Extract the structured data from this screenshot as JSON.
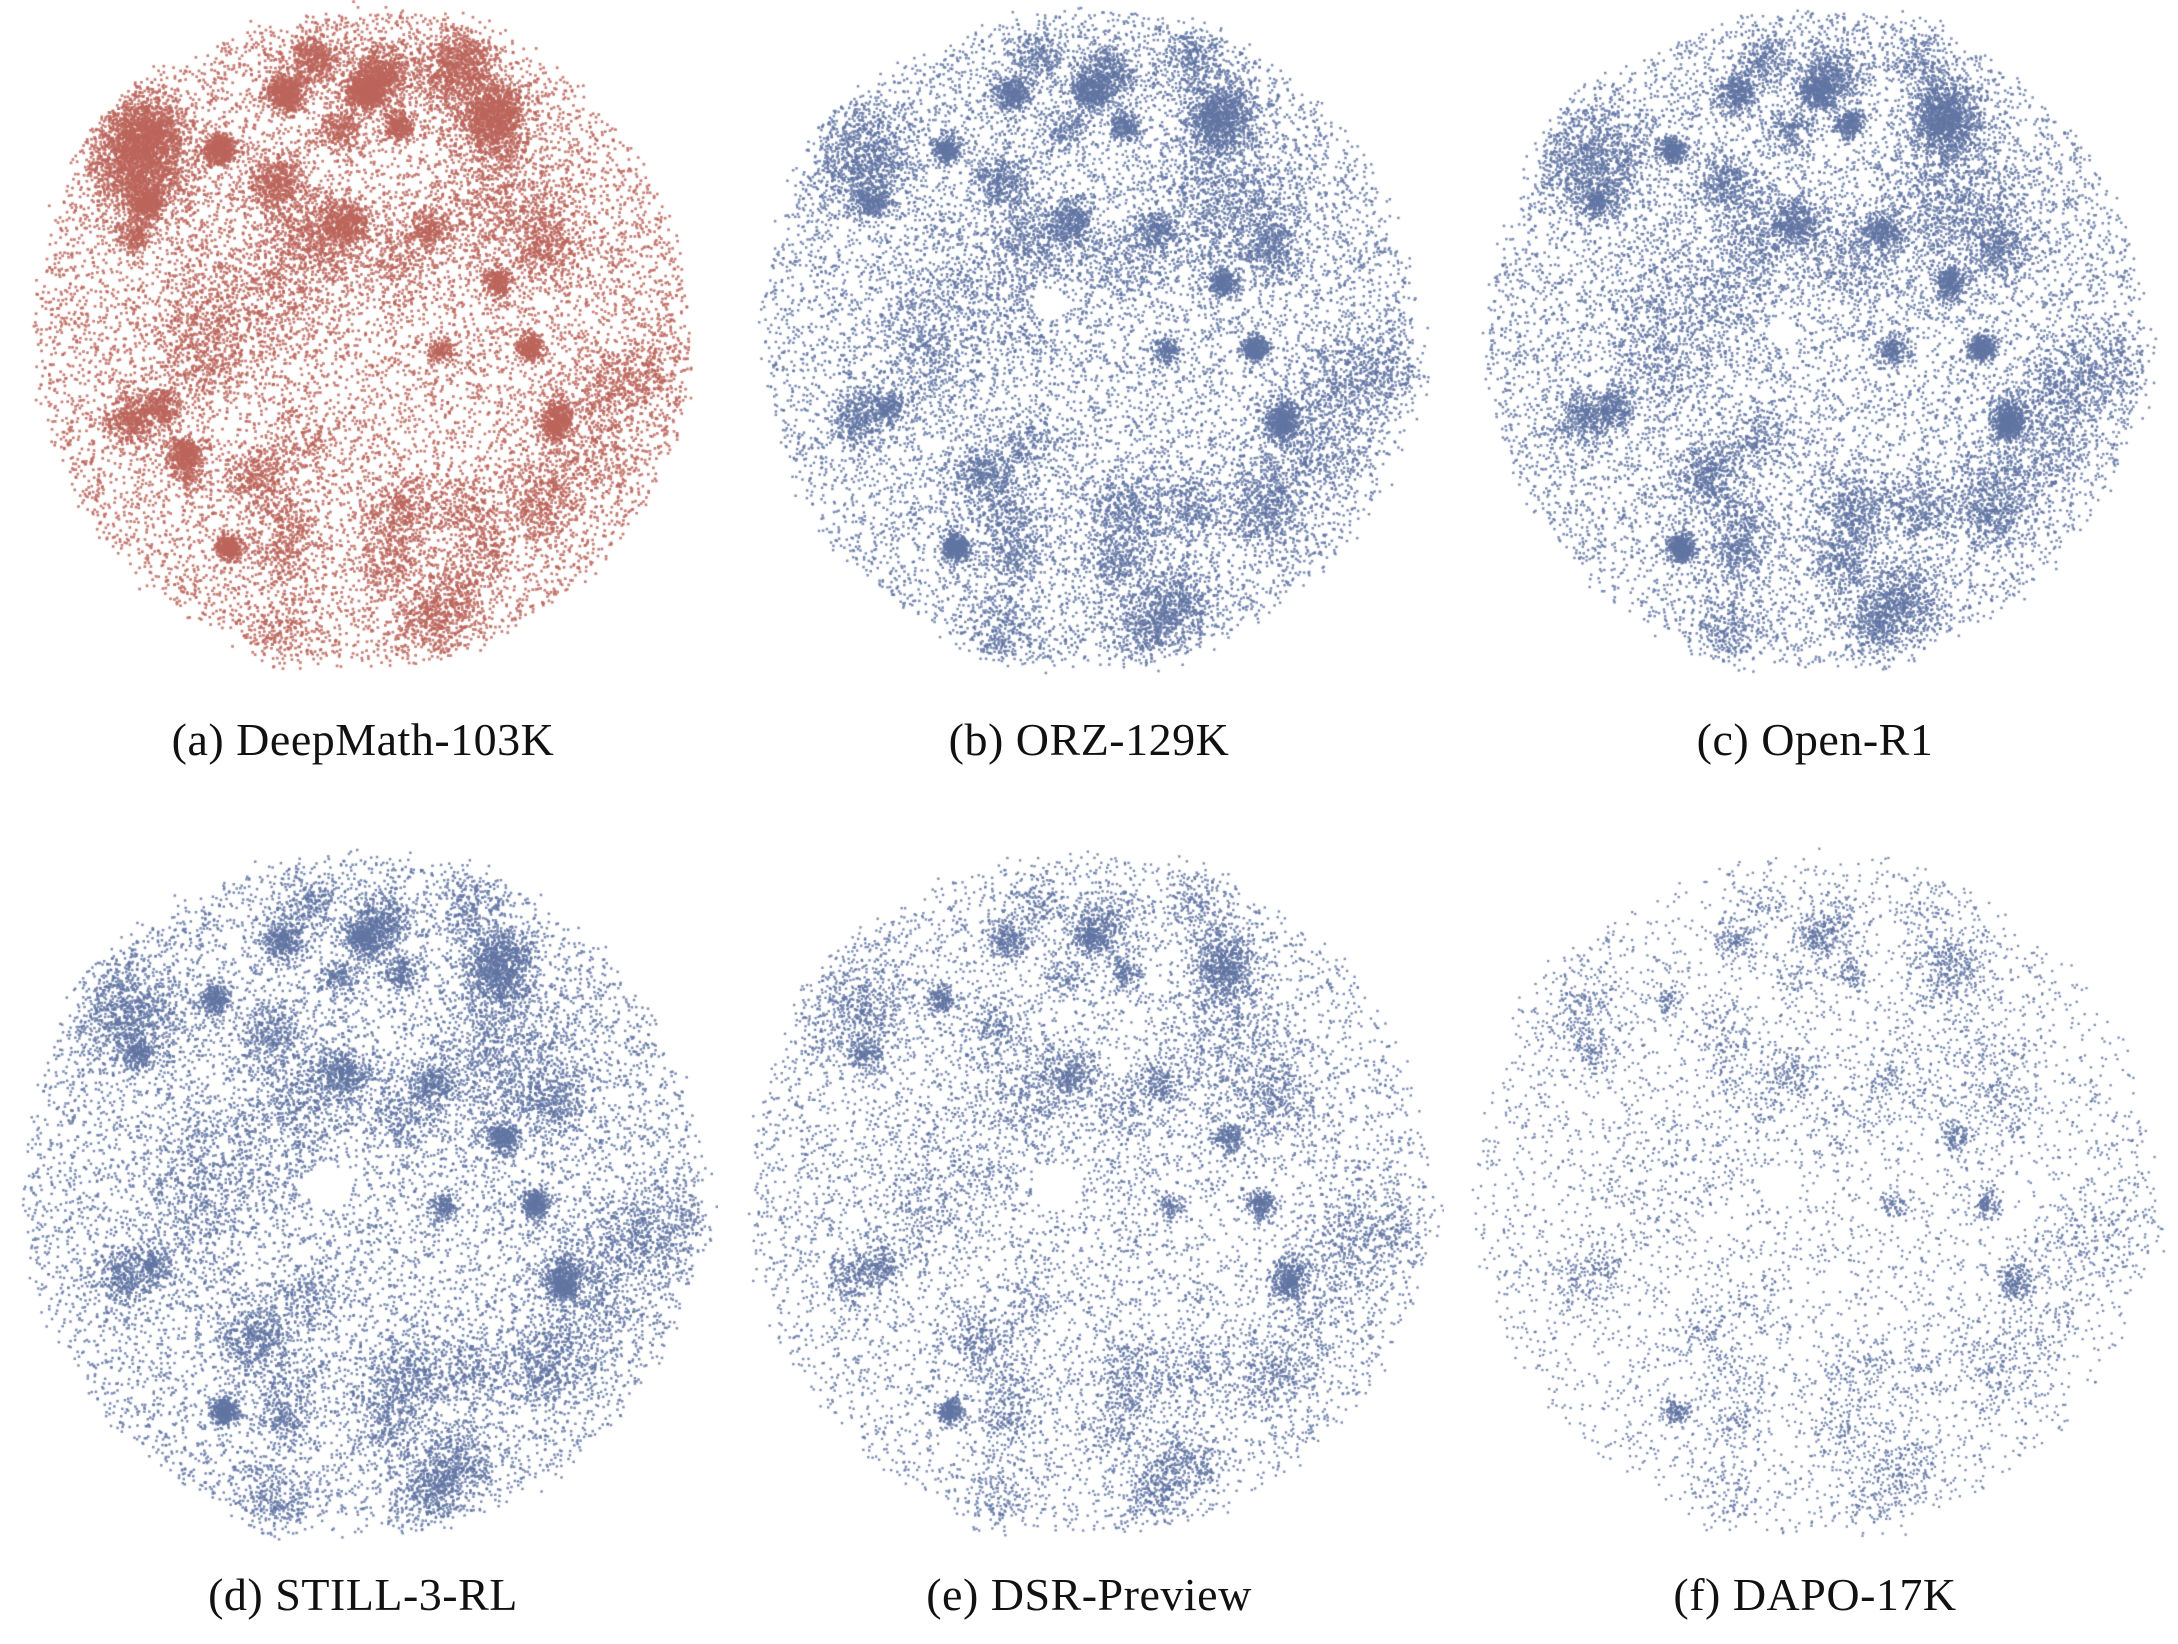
{
  "figure": {
    "kind": "t-SNE embedding scatter grid",
    "rows": 2,
    "cols": 3
  },
  "chart_data": {
    "type": "scatter",
    "title": "",
    "xlabel": "",
    "ylabel": "",
    "axes_visible": false,
    "grid": false,
    "legend": "none",
    "panels": [
      {
        "id": "a",
        "caption": "(a) DeepMath-103K",
        "dataset": "DeepMath-103K",
        "color": "#bc655b",
        "relative_density": "very dense, heavy dark clusters toward upper-left",
        "render": {
          "points": 30000,
          "clusters": 58,
          "cluster_frac": 0.66,
          "dot": 2.7,
          "alpha": 0.82,
          "layout_seed": 21,
          "point_seed": 101,
          "bias": {
            "x": -0.55,
            "y": -0.55,
            "strength": 1.1
          },
          "hole": null
        }
      },
      {
        "id": "b",
        "caption": "(b) ORZ-129K",
        "dataset": "ORZ-129K",
        "color": "#6175a4",
        "relative_density": "dense",
        "render": {
          "points": 26000,
          "clusters": 52,
          "cluster_frac": 0.6,
          "dot": 2.5,
          "alpha": 0.82,
          "layout_seed": 21,
          "point_seed": 202,
          "bias": null,
          "hole": {
            "x": -0.12,
            "y": -0.1,
            "r": 0.05
          }
        }
      },
      {
        "id": "c",
        "caption": "(c) Open-R1",
        "dataset": "Open-R1",
        "color": "#6175a4",
        "relative_density": "dense",
        "render": {
          "points": 26000,
          "clusters": 52,
          "cluster_frac": 0.62,
          "dot": 2.5,
          "alpha": 0.82,
          "layout_seed": 21,
          "point_seed": 303,
          "bias": null,
          "hole": {
            "x": -0.1,
            "y": -0.02,
            "r": 0.045
          }
        }
      },
      {
        "id": "d",
        "caption": "(d) STILL-3-RL",
        "dataset": "STILL-3-RL",
        "color": "#6175a4",
        "relative_density": "dense",
        "render": {
          "points": 24000,
          "clusters": 52,
          "cluster_frac": 0.6,
          "dot": 2.5,
          "alpha": 0.82,
          "layout_seed": 21,
          "point_seed": 404,
          "bias": null,
          "hole": {
            "x": -0.1,
            "y": -0.02,
            "r": 0.065
          }
        }
      },
      {
        "id": "e",
        "caption": "(e) DSR-Preview",
        "dataset": "DSR-Preview",
        "color": "#6175a4",
        "relative_density": "medium",
        "render": {
          "points": 17000,
          "clusters": 52,
          "cluster_frac": 0.56,
          "dot": 2.4,
          "alpha": 0.82,
          "layout_seed": 21,
          "point_seed": 505,
          "bias": null,
          "hole": {
            "x": -0.1,
            "y": -0.02,
            "r": 0.07
          }
        }
      },
      {
        "id": "f",
        "caption": "(f) DAPO-17K",
        "dataset": "DAPO-17K",
        "color": "#6175a4",
        "relative_density": "sparse",
        "render": {
          "points": 9000,
          "clusters": 52,
          "cluster_frac": 0.52,
          "dot": 2.3,
          "alpha": 0.82,
          "layout_seed": 21,
          "point_seed": 606,
          "bias": null,
          "hole": {
            "x": -0.1,
            "y": -0.02,
            "r": 0.06
          }
        }
      }
    ]
  }
}
